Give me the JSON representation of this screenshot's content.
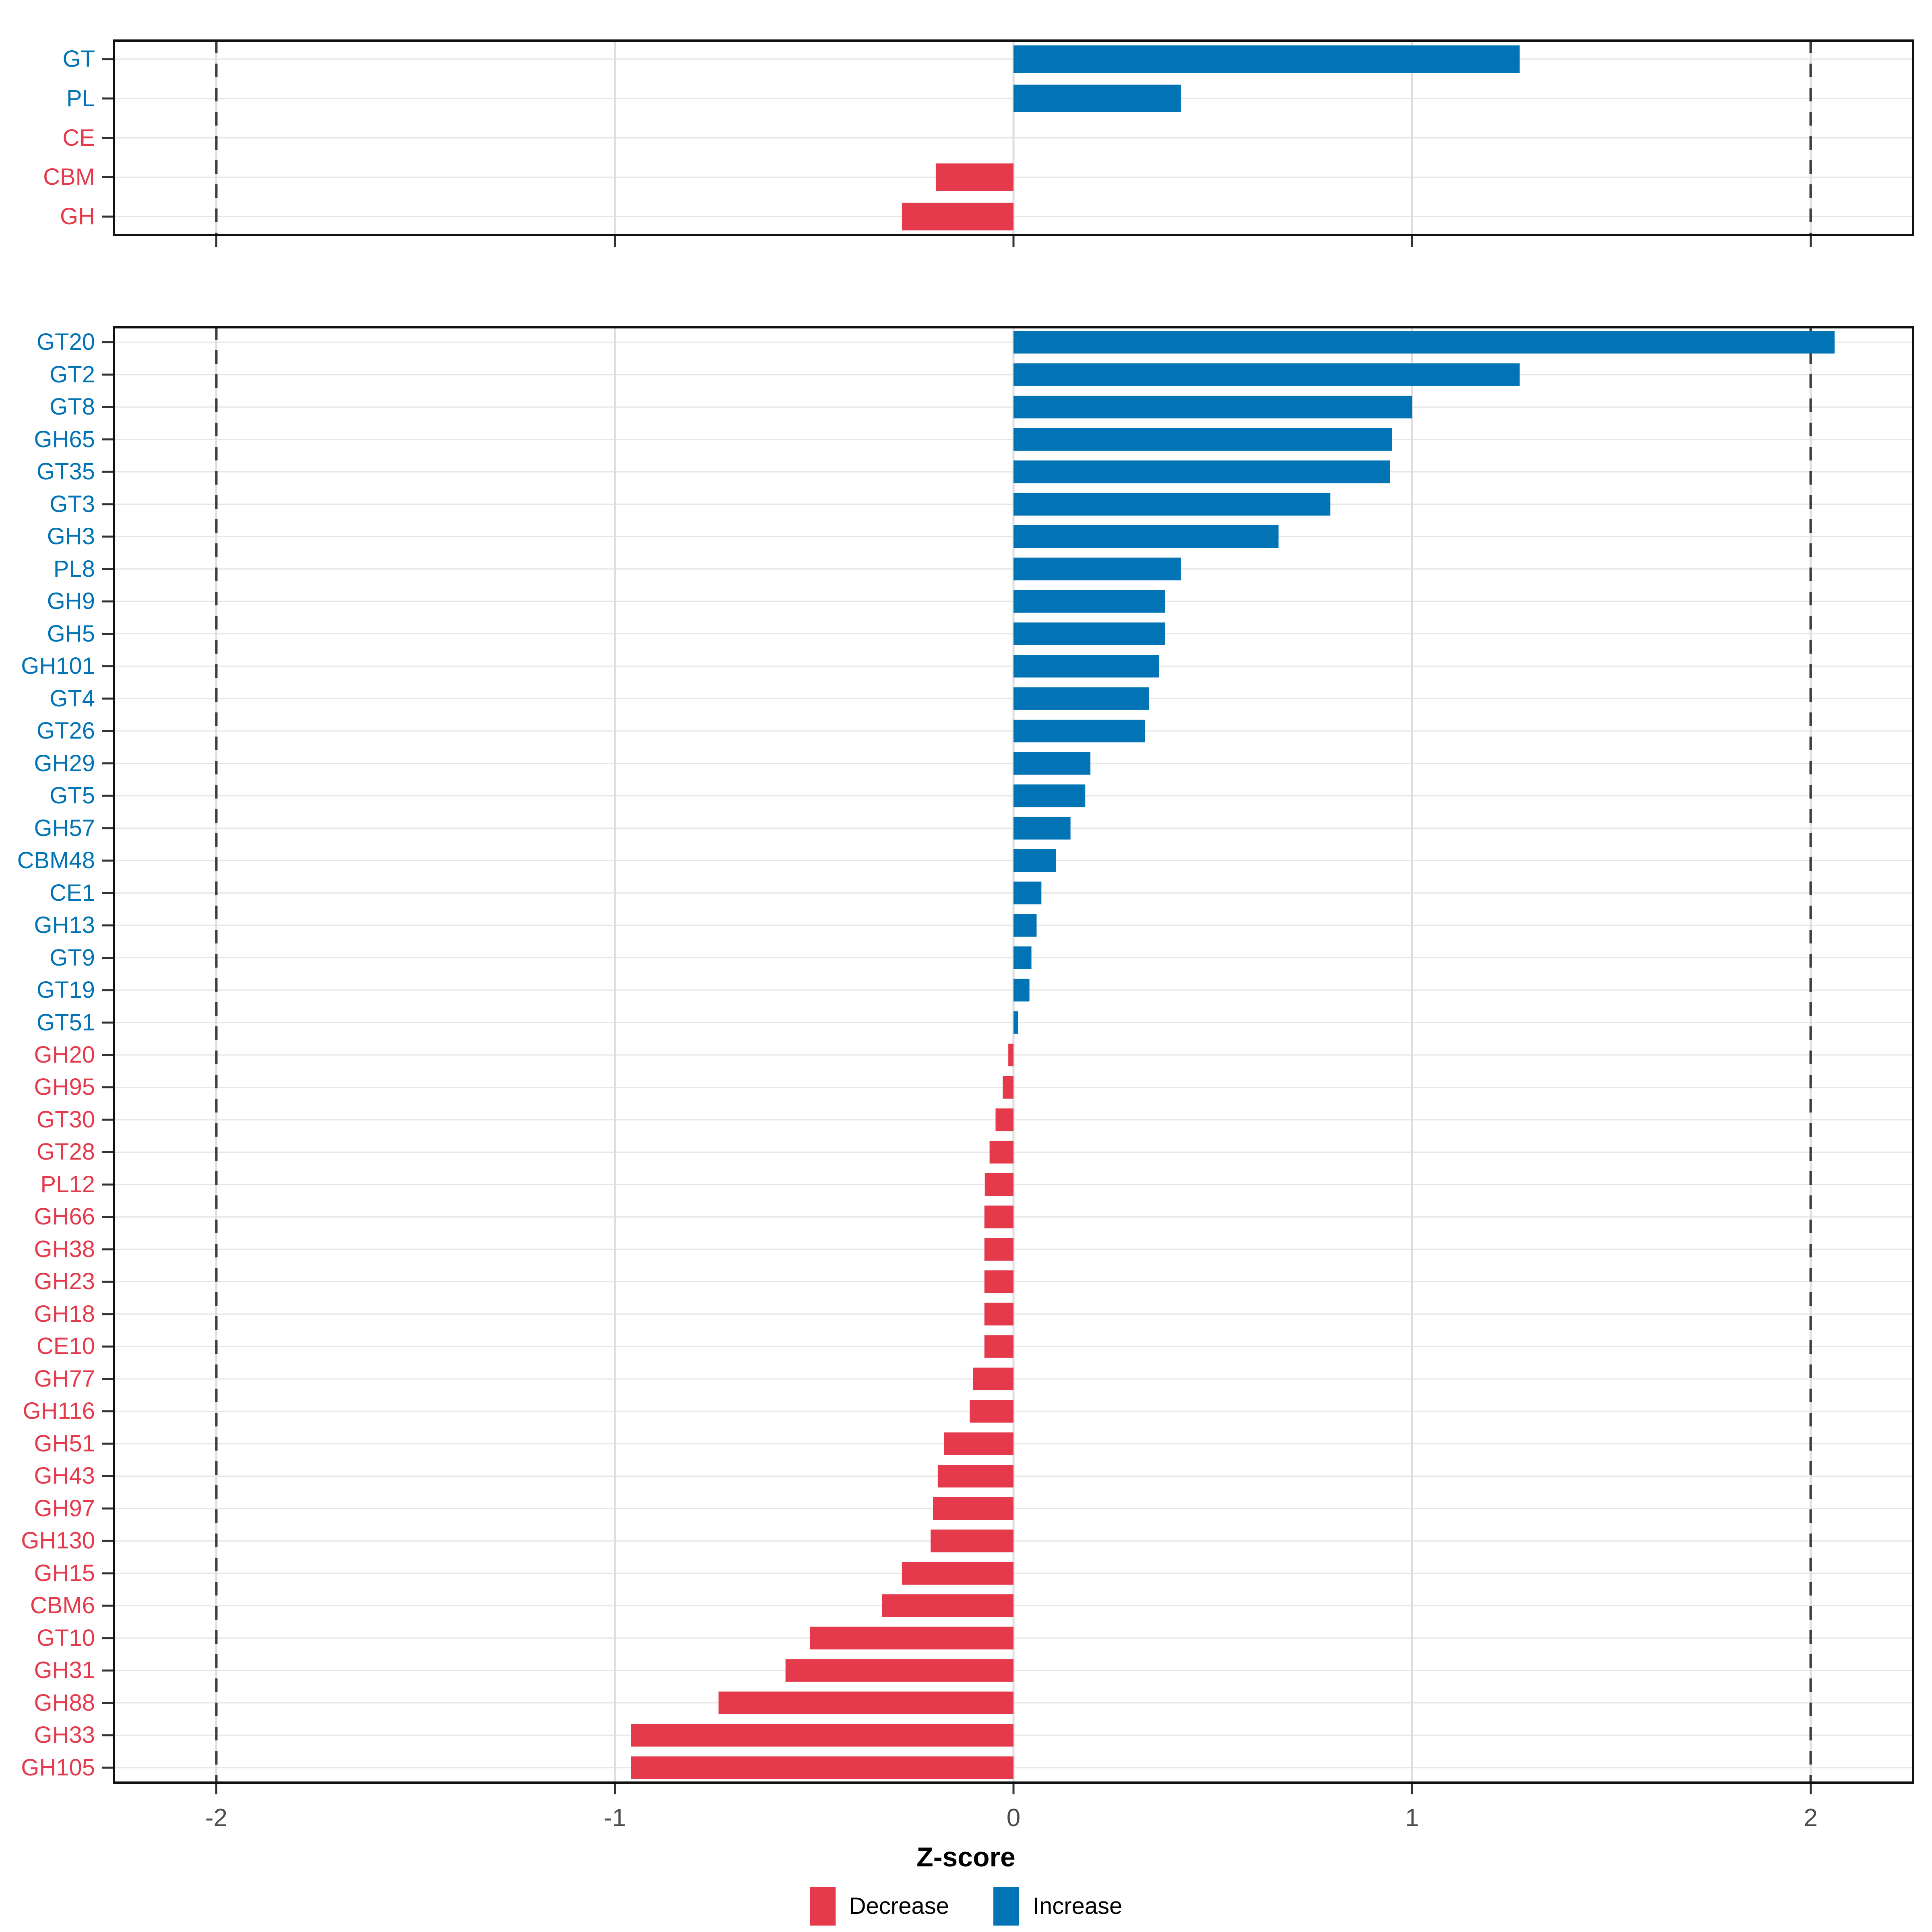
{
  "colors": {
    "increase": "#0274B5",
    "decrease": "#E43A4C",
    "grid_row": "#E6E6E6",
    "grid_vertical": "#DEDEDE",
    "dashed_line": "#3C3C3C",
    "panel_border": "#111111",
    "axis_tick": "#333333",
    "axis_text": "#4d4d4d"
  },
  "x_axis": {
    "label": "Z-score",
    "tick_labels": [
      "-2",
      "-1",
      "0",
      "1",
      "2"
    ],
    "tick_values": [
      -2,
      -1,
      0,
      1,
      2
    ],
    "domain": [
      -2.26,
      2.26
    ],
    "dashed_lines": [
      -2,
      2
    ]
  },
  "legend": {
    "position": "bottom",
    "items": [
      {
        "label": "Decrease",
        "group": "decrease"
      },
      {
        "label": "Increase",
        "group": "increase"
      }
    ]
  },
  "chart_data": [
    {
      "type": "bar",
      "orientation": "horizontal",
      "panel": "cazyme-class-summary",
      "categories": [
        "GT",
        "PL",
        "CE",
        "CBM",
        "GH"
      ],
      "values": [
        1.27,
        0.42,
        0.0,
        -0.195,
        -0.28
      ],
      "groups": [
        "increase",
        "increase",
        "decrease",
        "decrease",
        "decrease"
      ]
    },
    {
      "type": "bar",
      "orientation": "horizontal",
      "panel": "cazyme-families",
      "categories": [
        "GT20",
        "GT2",
        "GT8",
        "GH65",
        "GT35",
        "GT3",
        "GH3",
        "PL8",
        "GH9",
        "GH5",
        "GH101",
        "GT4",
        "GT26",
        "GH29",
        "GT5",
        "GH57",
        "CBM48",
        "CE1",
        "GH13",
        "GT9",
        "GT19",
        "GT51",
        "GH20",
        "GH95",
        "GT30",
        "GT28",
        "PL12",
        "GH66",
        "GH38",
        "GH23",
        "GH18",
        "CE10",
        "GH77",
        "GH116",
        "GH51",
        "GH43",
        "GH97",
        "GH130",
        "GH15",
        "CBM6",
        "GT10",
        "GH31",
        "GH88",
        "GH33",
        "GH105"
      ],
      "values": [
        2.06,
        1.27,
        1.0,
        0.95,
        0.945,
        0.795,
        0.665,
        0.42,
        0.38,
        0.38,
        0.365,
        0.34,
        0.33,
        0.193,
        0.18,
        0.143,
        0.107,
        0.07,
        0.058,
        0.045,
        0.04,
        0.012,
        -0.013,
        -0.027,
        -0.045,
        -0.06,
        -0.072,
        -0.073,
        -0.073,
        -0.073,
        -0.073,
        -0.073,
        -0.101,
        -0.11,
        -0.174,
        -0.19,
        -0.202,
        -0.208,
        -0.28,
        -0.33,
        -0.51,
        -0.572,
        -0.74,
        -0.96,
        -0.96
      ],
      "groups": [
        "increase",
        "increase",
        "increase",
        "increase",
        "increase",
        "increase",
        "increase",
        "increase",
        "increase",
        "increase",
        "increase",
        "increase",
        "increase",
        "increase",
        "increase",
        "increase",
        "increase",
        "increase",
        "increase",
        "increase",
        "increase",
        "increase",
        "decrease",
        "decrease",
        "decrease",
        "decrease",
        "decrease",
        "decrease",
        "decrease",
        "decrease",
        "decrease",
        "decrease",
        "decrease",
        "decrease",
        "decrease",
        "decrease",
        "decrease",
        "decrease",
        "decrease",
        "decrease",
        "decrease",
        "decrease",
        "decrease",
        "decrease",
        "decrease"
      ]
    }
  ]
}
